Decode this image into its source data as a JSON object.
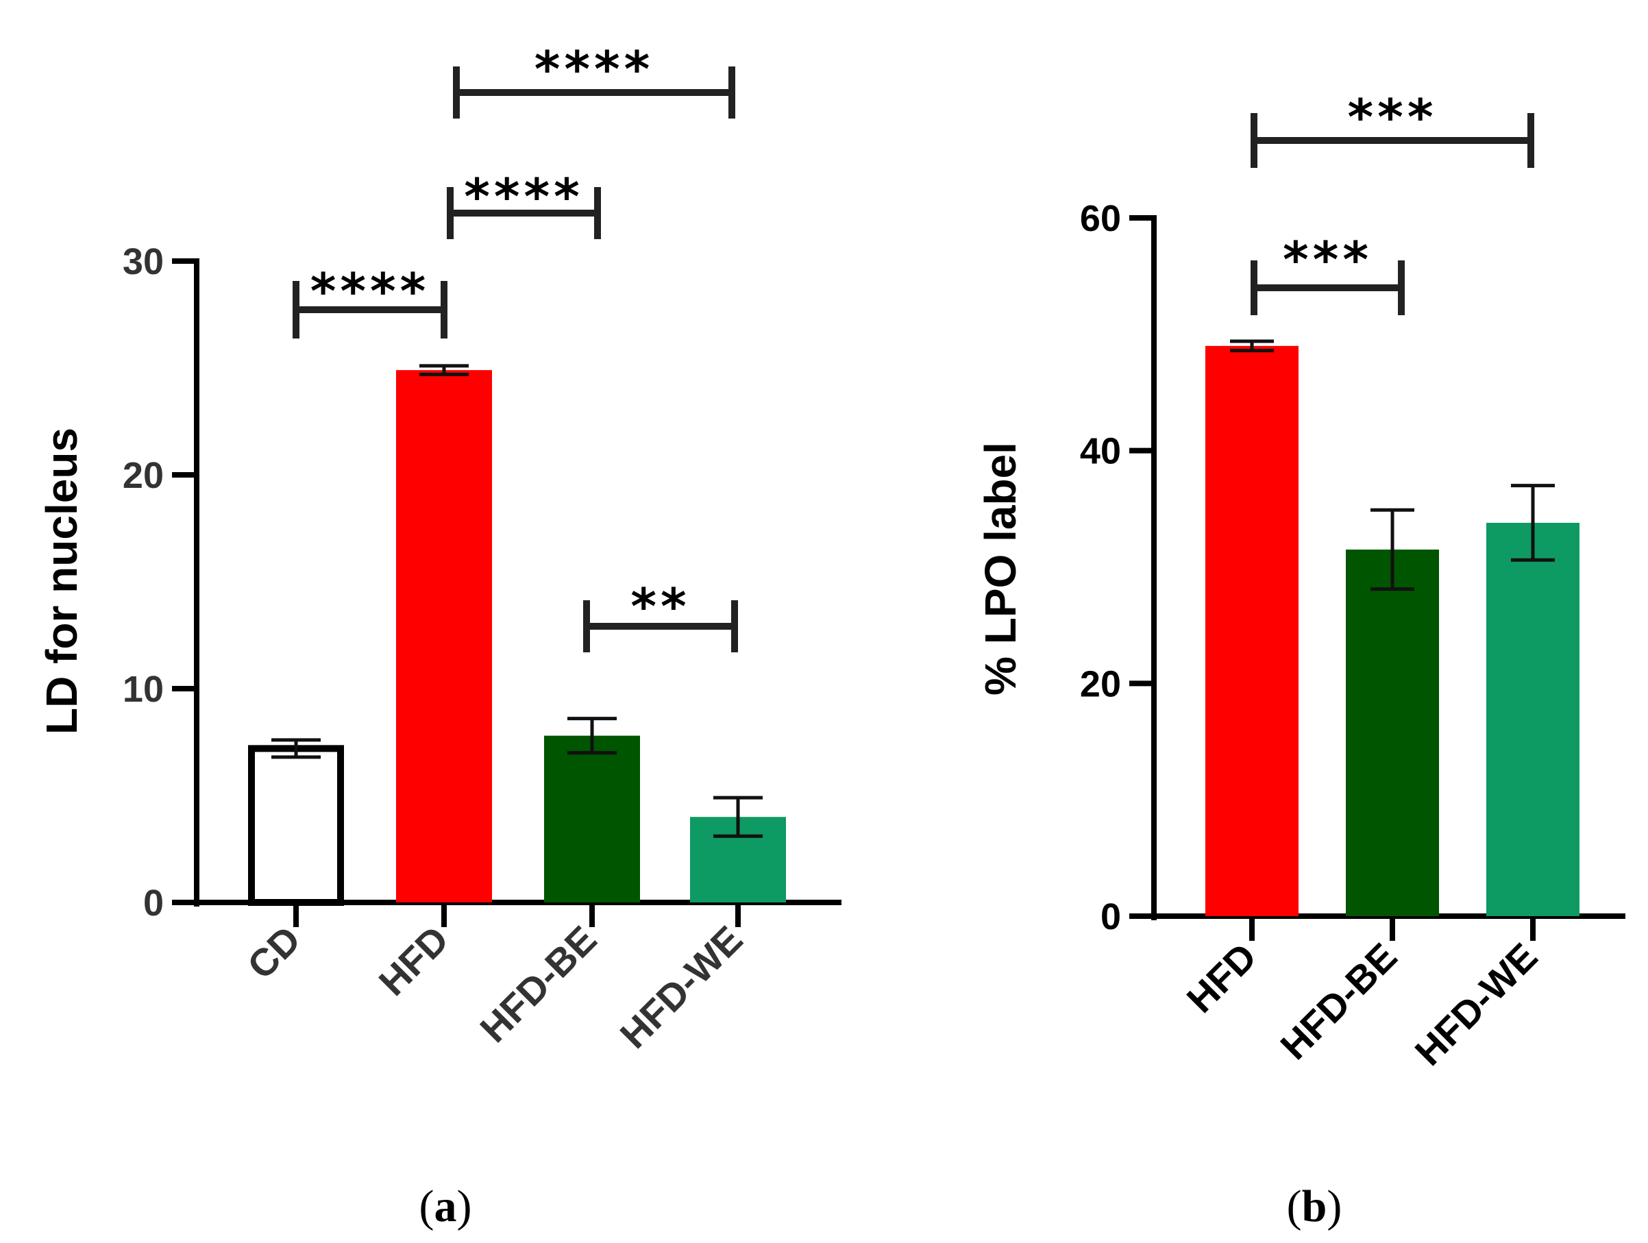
{
  "chart_data": [
    {
      "type": "bar",
      "panel": "a",
      "ylabel": "LD for nucleus",
      "xlabel": "",
      "ylim": [
        0,
        30
      ],
      "yticks": [
        "0",
        "10",
        "20",
        "30"
      ],
      "categories": [
        "CD",
        "HFD",
        "HFD-BE",
        "HFD-WE"
      ],
      "values": [
        7.2,
        24.9,
        7.8,
        4.0
      ],
      "errors": [
        0.4,
        0.2,
        0.8,
        0.9
      ],
      "colors": [
        "#ffffff",
        "#ff0000",
        "#005500",
        "#0e9a63"
      ],
      "significance": [
        {
          "from": "CD",
          "to": "HFD",
          "label": "****"
        },
        {
          "from": "HFD",
          "to": "HFD-BE",
          "label": "****"
        },
        {
          "from": "HFD",
          "to": "HFD-WE",
          "label": "****"
        },
        {
          "from": "HFD-BE",
          "to": "HFD-WE",
          "label": "**"
        }
      ]
    },
    {
      "type": "bar",
      "panel": "b",
      "ylabel": "% LPO label",
      "xlabel": "",
      "ylim": [
        0,
        60
      ],
      "yticks": [
        "0",
        "20",
        "40",
        "60"
      ],
      "categories": [
        "HFD",
        "HFD-BE",
        "HFD-WE"
      ],
      "values": [
        49.0,
        31.5,
        33.8
      ],
      "errors": [
        0.4,
        3.4,
        3.2
      ],
      "colors": [
        "#ff0000",
        "#005500",
        "#0e9a63"
      ],
      "significance": [
        {
          "from": "HFD",
          "to": "HFD-BE",
          "label": "***"
        },
        {
          "from": "HFD",
          "to": "HFD-WE",
          "label": "***"
        }
      ]
    }
  ],
  "captions": {
    "a": {
      "open": "(",
      "letter": "a",
      "close": ")"
    },
    "b": {
      "open": "(",
      "letter": "b",
      "close": ")"
    }
  }
}
